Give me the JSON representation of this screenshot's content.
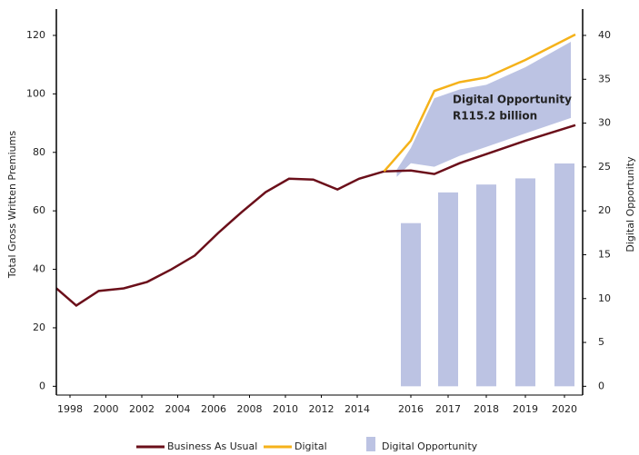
{
  "chart_data": {
    "type": "line",
    "ylabel": "Total Gross Written Premiums",
    "y2label": "Digital Opportunity",
    "xlim": [
      1997.25,
      2020.5
    ],
    "xticks": [
      1998,
      2000,
      2002,
      2004,
      2006,
      2008,
      2010,
      2012,
      2014,
      2016,
      2017,
      2018,
      2019,
      2020
    ],
    "ylim": [
      -3,
      129
    ],
    "yticks": [
      0,
      20,
      40,
      60,
      80,
      100,
      120
    ],
    "y2lim": [
      -1,
      43
    ],
    "y2ticks": [
      0,
      5,
      10,
      15,
      20,
      25,
      30,
      35,
      40
    ],
    "annotation": [
      "Digital Opportunity",
      "R115.2 billion"
    ],
    "series": [
      {
        "name": "Digital Opportunity",
        "type": "bar",
        "axis": "y2",
        "color": "#bcc3e3",
        "x": [
          2016,
          2017,
          2018,
          2019,
          2020
        ],
        "values": [
          18.6,
          22.1,
          23.0,
          23.7,
          25.4
        ]
      },
      {
        "name": "Business As Usual",
        "type": "line",
        "color": "#6b0f1a",
        "x": [
          1997.25,
          1998.35,
          1999.6,
          2001.0,
          2002.3,
          2003.65,
          2004.95,
          2006.25,
          2007.55,
          2008.9,
          2010.2,
          2011.55,
          2012.9,
          2014.07,
          2015,
          2016,
          2016.63,
          2017.3,
          2018,
          2019,
          2020.3
        ],
        "values": [
          33.5,
          27.6,
          32.6,
          33.5,
          35.7,
          40,
          44.7,
          52.4,
          59.5,
          66.4,
          71,
          70.7,
          67.3,
          71,
          73.5,
          73.8,
          72.6,
          76.3,
          79.4,
          84,
          89.3
        ]
      },
      {
        "name": "Digital",
        "type": "line",
        "color": "#f5b21a",
        "x": [
          2015,
          2016,
          2016.63,
          2017.3,
          2018,
          2019,
          2020.3
        ],
        "values": [
          73.5,
          84,
          101,
          104,
          105.6,
          111.6,
          120.3
        ]
      }
    ]
  }
}
